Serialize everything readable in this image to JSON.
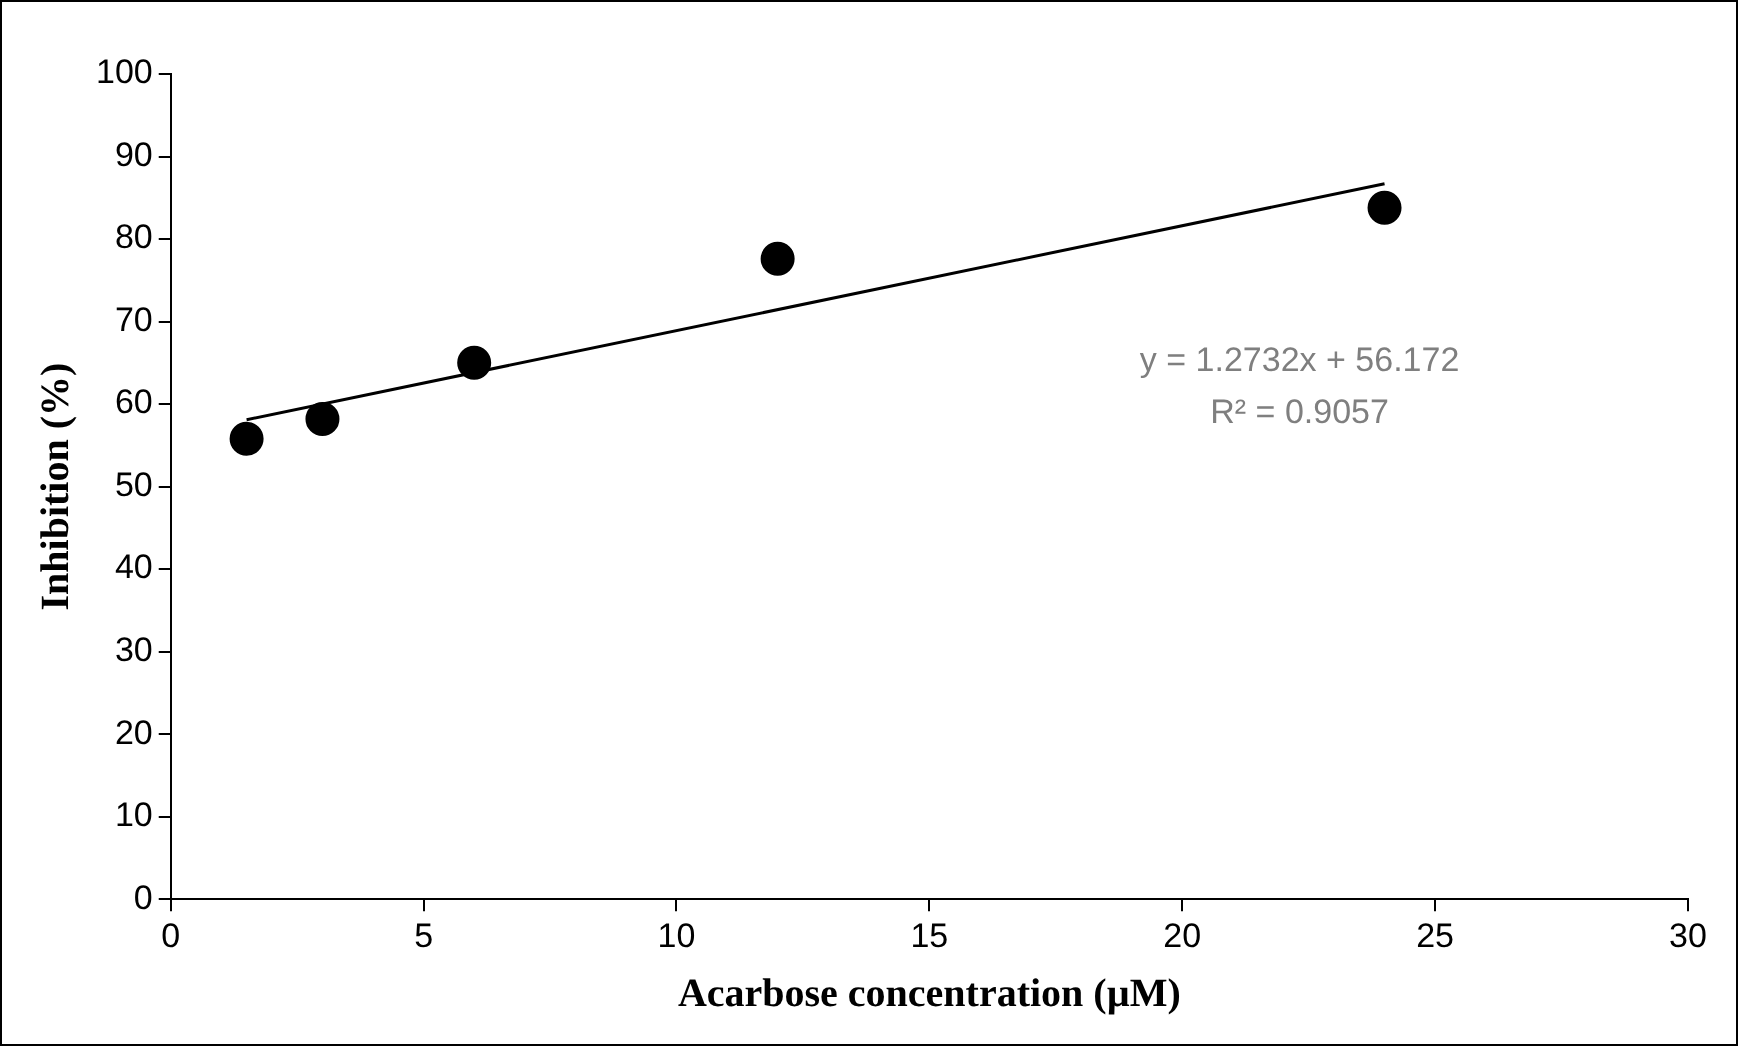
{
  "chart_data": {
    "type": "scatter",
    "xlabel": "Acarbose concentration (µM)",
    "ylabel": "Inhibition (%)",
    "xlim": [
      0,
      30
    ],
    "xticks": [
      0,
      5,
      10,
      15,
      20,
      25,
      30
    ],
    "ylim": [
      0,
      100
    ],
    "yticks": [
      0,
      10,
      20,
      30,
      40,
      50,
      60,
      70,
      80,
      90,
      100
    ],
    "grid": false,
    "legend": false,
    "series": [
      {
        "color": "#000000",
        "marker": "circle",
        "x": [
          1.5,
          3,
          6,
          12,
          24
        ],
        "values": [
          55.8,
          58.2,
          65,
          77.6,
          83.8
        ]
      },
      {
        "type": "line",
        "color": "#000000",
        "marker": "none",
        "line_style": "solid",
        "x": [
          1.5,
          24
        ],
        "values": [
          58.1,
          86.7
        ]
      }
    ],
    "annotations": [
      "y = 1.2732x + 56.172",
      "R² = 0.9057"
    ]
  }
}
